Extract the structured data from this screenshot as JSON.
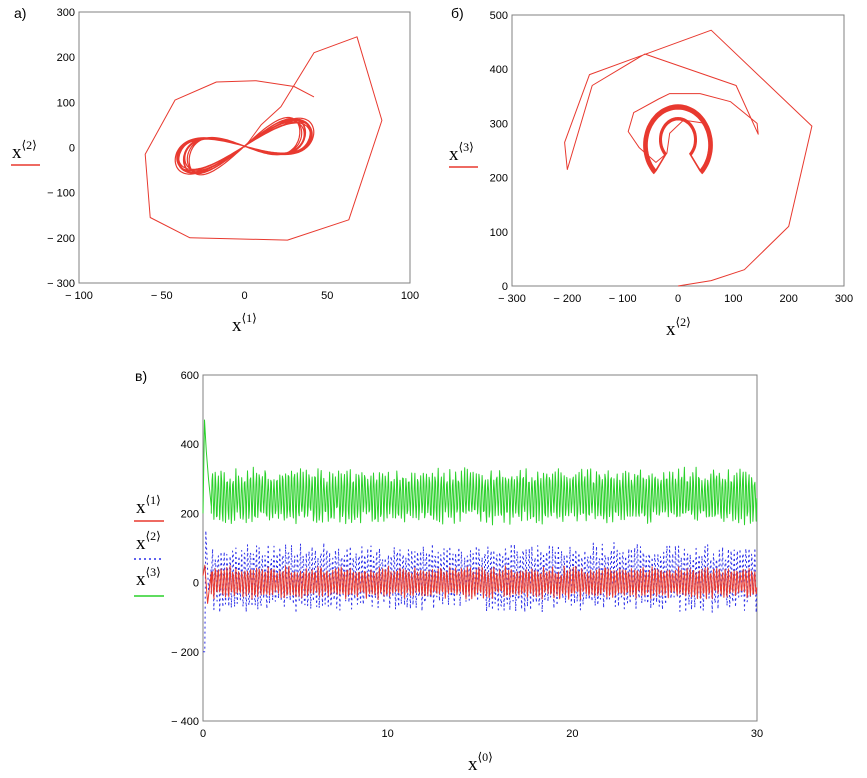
{
  "chart_data": [
    {
      "id": "a",
      "type": "line",
      "panel_label": "а)",
      "xlabel": {
        "base": "x",
        "sup": "⟨1⟩"
      },
      "ylabel": {
        "base": "x",
        "sup": "⟨2⟩"
      },
      "xlim": [
        -100,
        100
      ],
      "ylim": [
        -300,
        300
      ],
      "xticks": [
        -100,
        -50,
        0,
        50,
        100
      ],
      "yticks": [
        -300,
        -200,
        -100,
        0,
        100,
        200,
        300
      ],
      "xtick_labels": [
        "− 100",
        "− 50",
        "0",
        "50",
        "100"
      ],
      "ytick_labels": [
        "− 300",
        "− 200",
        "− 100",
        "0",
        "100",
        "200",
        "300"
      ],
      "grid": false,
      "legend": {
        "series": [
          {
            "color": "#e8392f"
          }
        ]
      },
      "series": [
        {
          "color": "#e8392f",
          "width": 1,
          "points": [
            [
              0,
              0
            ],
            [
              10,
              50
            ],
            [
              22,
              90
            ],
            [
              42,
              210
            ],
            [
              68,
              245
            ],
            [
              83,
              60
            ],
            [
              63,
              -160
            ],
            [
              26,
              -205
            ],
            [
              -33,
              -200
            ],
            [
              -57,
              -155
            ],
            [
              -60,
              -15
            ],
            [
              -42,
              105
            ],
            [
              -17,
              145
            ],
            [
              7,
              148
            ],
            [
              30,
              135
            ],
            [
              42,
              112
            ]
          ]
        },
        {
          "color": "#e8392f",
          "width": 1.2,
          "attractor": {
            "cx": 0,
            "cy": 3,
            "amp": 38,
            "yscale": 80,
            "k": 0.9,
            "tilt": 0.6,
            "loops": 12,
            "jitter": 0.12
          }
        }
      ]
    },
    {
      "id": "b",
      "type": "line",
      "panel_label": "б)",
      "xlabel": {
        "base": "x",
        "sup": "⟨2⟩"
      },
      "ylabel": {
        "base": "x",
        "sup": "⟨3⟩"
      },
      "xlim": [
        -300,
        300
      ],
      "ylim": [
        0,
        500
      ],
      "xticks": [
        -300,
        -200,
        -100,
        0,
        100,
        200,
        300
      ],
      "yticks": [
        0,
        100,
        200,
        300,
        400,
        500
      ],
      "xtick_labels": [
        "− 300",
        "− 200",
        "− 100",
        "0",
        "100",
        "200",
        "300"
      ],
      "ytick_labels": [
        "0",
        "100",
        "200",
        "300",
        "400",
        "500"
      ],
      "grid": false,
      "legend": {
        "series": [
          {
            "color": "#e8392f"
          }
        ]
      },
      "series": [
        {
          "color": "#e8392f",
          "width": 1,
          "points": [
            [
              0,
              0
            ],
            [
              60,
              10
            ],
            [
              120,
              30
            ],
            [
              200,
              110
            ],
            [
              242,
              295
            ],
            [
              60,
              472
            ],
            [
              -160,
              390
            ],
            [
              -205,
              265
            ],
            [
              -200,
              215
            ],
            [
              -155,
              370
            ],
            [
              -60,
              428
            ],
            [
              105,
              370
            ],
            [
              145,
              280
            ],
            [
              143,
              300
            ],
            [
              95,
              340
            ],
            [
              40,
              355
            ],
            [
              -15,
              355
            ],
            [
              -35,
              345
            ],
            [
              -80,
              320
            ],
            [
              -90,
              285
            ],
            [
              -70,
              255
            ],
            [
              -40,
              228
            ],
            [
              -20,
              245
            ],
            [
              -15,
              282
            ],
            [
              10,
              306
            ],
            [
              50,
              300
            ]
          ]
        },
        {
          "color": "#e8392f",
          "width": 1.2,
          "horseshoe": {
            "cx": 0,
            "cy": 260,
            "rx": 90,
            "ry": 70,
            "loops": 12,
            "jitter": 0.07
          }
        }
      ]
    },
    {
      "id": "c",
      "type": "line",
      "panel_label": "в)",
      "xlabel": {
        "base": "x",
        "sup": "⟨0⟩"
      },
      "xlim": [
        0,
        30
      ],
      "ylim": [
        -400,
        600
      ],
      "xticks": [
        0,
        10,
        20,
        30
      ],
      "yticks": [
        -400,
        -200,
        0,
        200,
        400,
        600
      ],
      "xtick_labels": [
        "0",
        "10",
        "20",
        "30"
      ],
      "ytick_labels": [
        "− 400",
        "− 200",
        "0",
        "200",
        "400",
        "600"
      ],
      "grid": false,
      "legend": {
        "placement": "left",
        "series": [
          {
            "base": "x",
            "sup": "⟨1⟩",
            "color": "#e8392f",
            "dash": "solid"
          },
          {
            "base": "x",
            "sup": "⟨2⟩",
            "color": "#2b2ee8",
            "dash": "dotted"
          },
          {
            "base": "x",
            "sup": "⟨3⟩",
            "color": "#2ad12a",
            "dash": "solid"
          }
        ]
      },
      "series": [
        {
          "color": "#2ad12a",
          "dash": "solid",
          "mean": 250,
          "amp": 65,
          "freq": 6.3,
          "transient": [
            [
              0,
              200
            ],
            [
              0.08,
              470
            ],
            [
              0.18,
              380
            ],
            [
              0.3,
              300
            ],
            [
              0.45,
              220
            ]
          ]
        },
        {
          "color": "#2b2ee8",
          "dash": "dotted",
          "mean": 15,
          "amp": 80,
          "freq": 6.3,
          "transient": [
            [
              0,
              -200
            ],
            [
              0.1,
              -200
            ],
            [
              0.15,
              150
            ],
            [
              0.3,
              -20
            ],
            [
              0.45,
              40
            ]
          ]
        },
        {
          "color": "#e8392f",
          "dash": "solid",
          "mean": 0,
          "amp": 38,
          "freq": 6.3,
          "transient": [
            [
              0,
              20
            ],
            [
              0.1,
              50
            ],
            [
              0.25,
              -60
            ],
            [
              0.45,
              30
            ]
          ]
        }
      ]
    }
  ]
}
